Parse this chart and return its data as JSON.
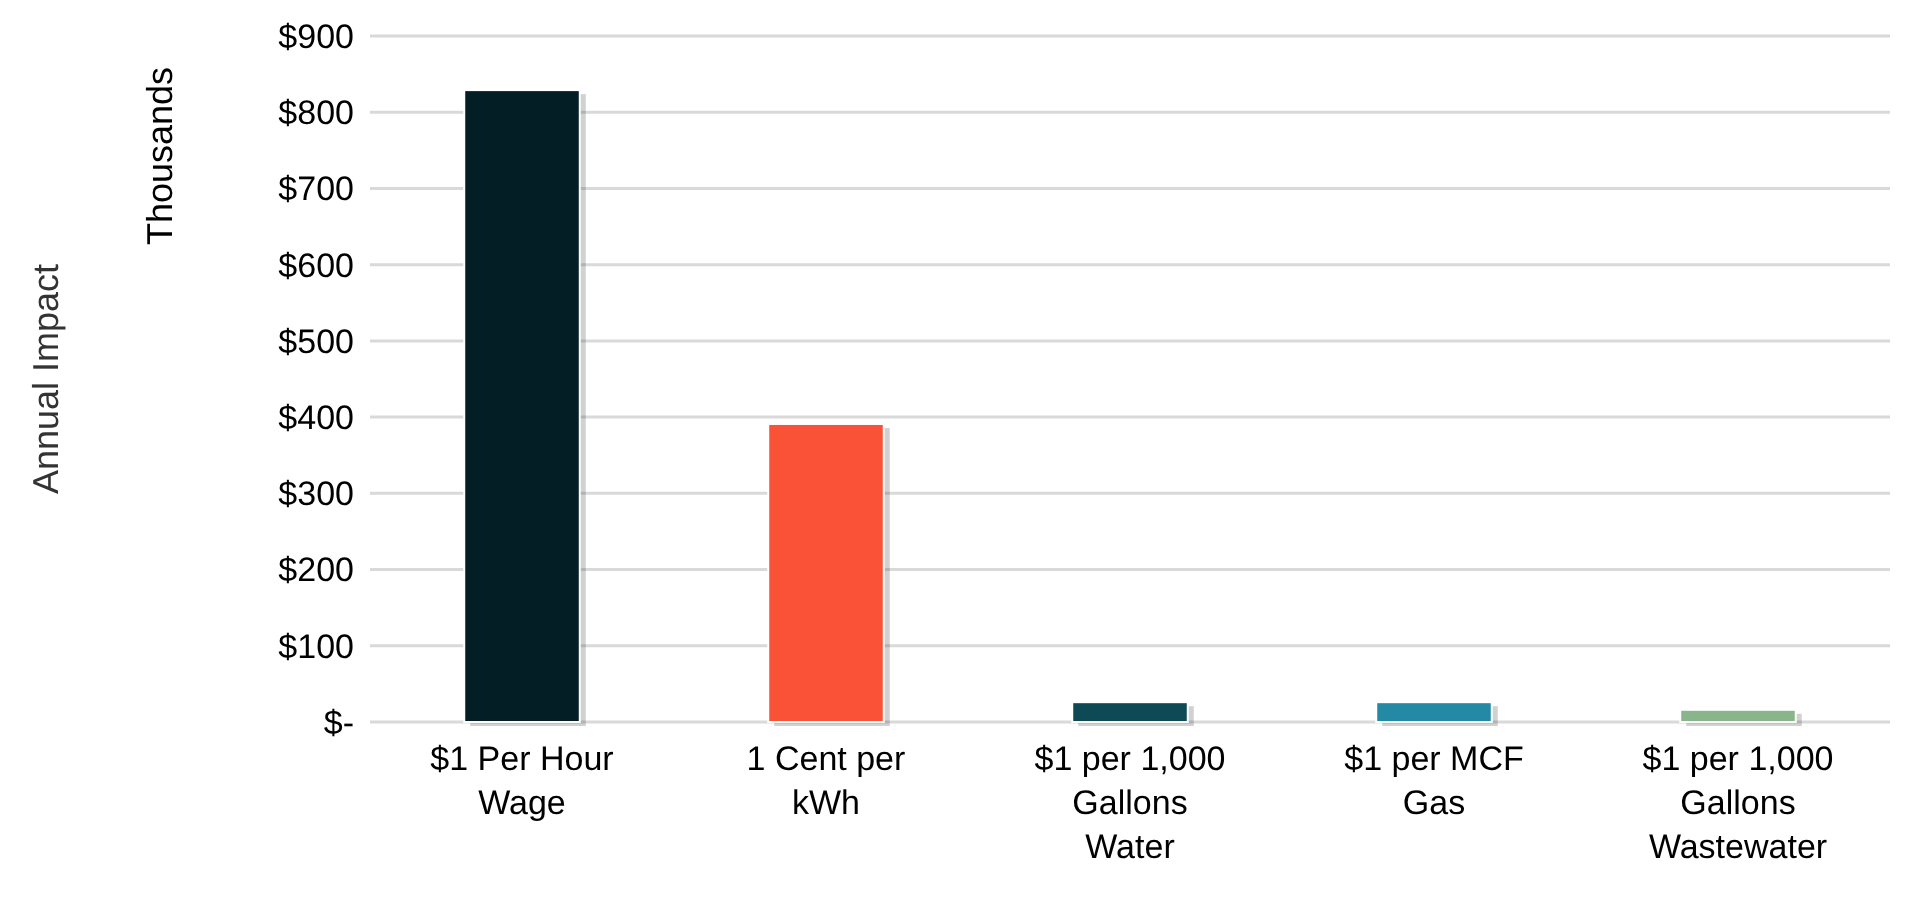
{
  "chart_data": {
    "type": "bar",
    "annotations": [
      "Annual Impact",
      "Thousands"
    ],
    "categories": [
      "$1 Per Hour Wage",
      "1 Cent per kWh",
      "$1 per 1,000 Gallons Water",
      "$1 per MCF Gas",
      "$1 per 1,000 Gallons Wastewater"
    ],
    "values": [
      829,
      391,
      26,
      26,
      16
    ],
    "colors": [
      "#031e24",
      "#f95236",
      "#0d4a55",
      "#2389a5",
      "#89b58a"
    ],
    "ylim": [
      0,
      900
    ],
    "yticks": [
      {
        "value": 0,
        "label": "$-"
      },
      {
        "value": 100,
        "label": "$100"
      },
      {
        "value": 200,
        "label": "$200"
      },
      {
        "value": 300,
        "label": "$300"
      },
      {
        "value": 400,
        "label": "$400"
      },
      {
        "value": 500,
        "label": "$500"
      },
      {
        "value": 600,
        "label": "$600"
      },
      {
        "value": 700,
        "label": "$700"
      },
      {
        "value": 800,
        "label": "$800"
      },
      {
        "value": 900,
        "label": "$900"
      }
    ],
    "grid": "y"
  }
}
